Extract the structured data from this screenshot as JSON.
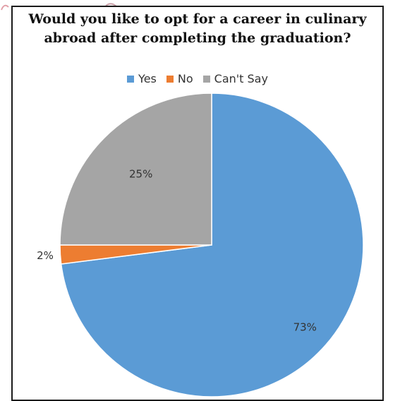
{
  "chart_data": {
    "type": "pie",
    "title_lines": [
      "Would you like to opt for a career in culinary",
      "abroad after completing the graduation?"
    ],
    "categories": [
      "Yes",
      "No",
      "Can't Say"
    ],
    "values": [
      73,
      2,
      25
    ],
    "data_labels": [
      "73%",
      "2%",
      "25%"
    ],
    "colors": [
      "#5B9BD5",
      "#ED7D31",
      "#A5A5A5"
    ],
    "legend": "top"
  }
}
